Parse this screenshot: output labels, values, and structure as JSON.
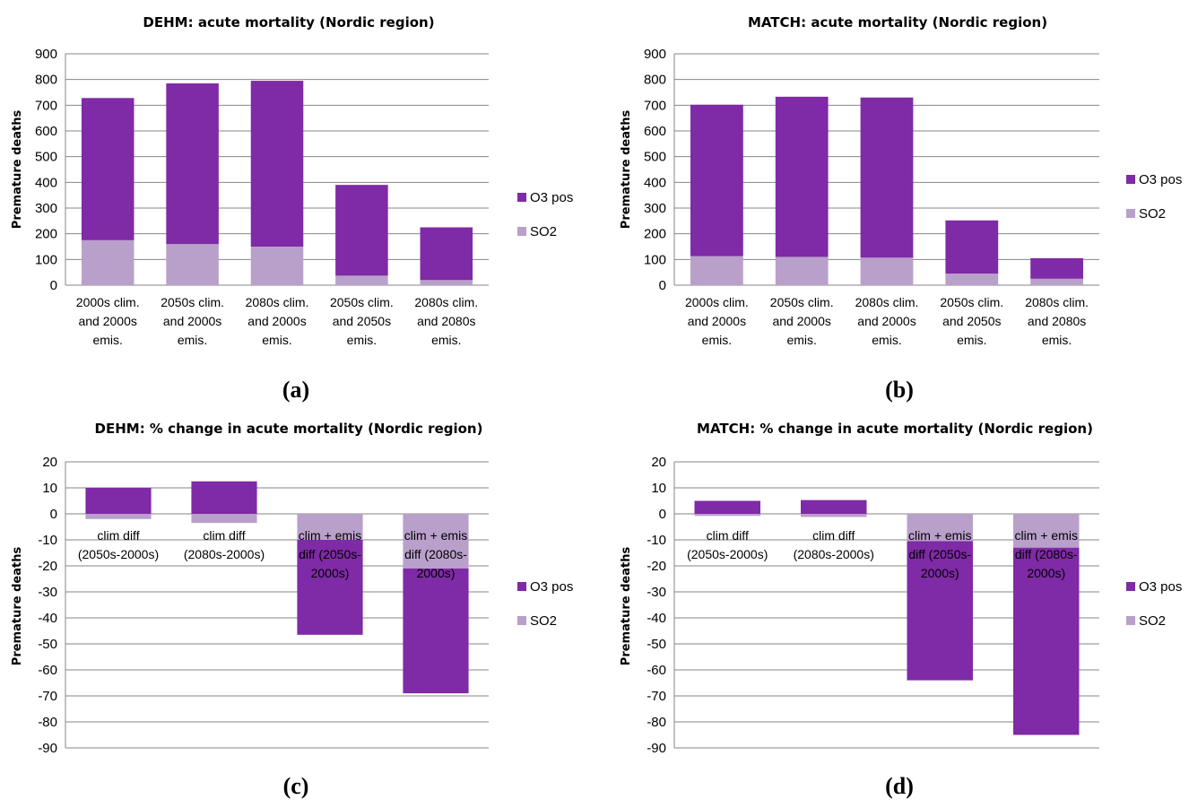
{
  "colors": {
    "o3": "#7f2aa6",
    "so2": "#b9a0ca"
  },
  "chart_data": [
    {
      "type": "bar",
      "stacked": true,
      "title": "DEHM: acute mortality (Nordic region)",
      "panel_label": "(a)",
      "ylabel": "Premature deaths",
      "ylim": [
        0,
        900
      ],
      "yticks": [
        "0",
        "100",
        "200",
        "300",
        "400",
        "500",
        "600",
        "700",
        "800",
        "900"
      ],
      "categories": [
        [
          "2000s clim.",
          "and 2000s",
          "emis."
        ],
        [
          "2050s clim.",
          "and 2000s",
          "emis."
        ],
        [
          "2080s clim.",
          "and 2000s",
          "emis."
        ],
        [
          "2050s clim.",
          "and 2050s",
          "emis."
        ],
        [
          "2080s clim.",
          "and 2080s",
          "emis."
        ]
      ],
      "series": [
        {
          "name": "SO2",
          "values": [
            175,
            160,
            150,
            37,
            20
          ]
        },
        {
          "name": "O3 pos",
          "values": [
            553,
            625,
            645,
            353,
            205
          ]
        }
      ],
      "legend": [
        "O3 pos",
        "SO2"
      ],
      "legend_position": "right",
      "grid": true
    },
    {
      "type": "bar",
      "stacked": true,
      "title": "MATCH: acute mortality (Nordic region)",
      "panel_label": "(b)",
      "ylabel": "Premature deaths",
      "ylim": [
        0,
        900
      ],
      "yticks": [
        "0",
        "100",
        "200",
        "300",
        "400",
        "500",
        "600",
        "700",
        "800",
        "900"
      ],
      "categories": [
        [
          "2000s clim.",
          "and 2000s",
          "emis."
        ],
        [
          "2050s clim.",
          "and 2000s",
          "emis."
        ],
        [
          "2080s clim.",
          "and 2000s",
          "emis."
        ],
        [
          "2050s clim.",
          "and 2050s",
          "emis."
        ],
        [
          "2080s clim.",
          "and 2080s",
          "emis."
        ]
      ],
      "series": [
        {
          "name": "SO2",
          "values": [
            113,
            110,
            107,
            45,
            25
          ]
        },
        {
          "name": "O3 pos",
          "values": [
            589,
            623,
            623,
            207,
            80
          ]
        }
      ],
      "legend": [
        "O3 pos",
        "SO2"
      ],
      "legend_position": "right",
      "grid": true
    },
    {
      "type": "bar",
      "stacked": true,
      "title": "DEHM: % change in acute mortality (Nordic region)",
      "panel_label": "(c)",
      "ylabel": "Premature deaths",
      "ylim": [
        -90,
        20
      ],
      "yticks": [
        "20",
        "10",
        "0",
        "-10",
        "-20",
        "-30",
        "-40",
        "-50",
        "-60",
        "-70",
        "-80",
        "-90"
      ],
      "categories": [
        [
          "clim diff",
          "(2050s-2000s)"
        ],
        [
          "clim diff",
          "(2080s-2000s)"
        ],
        [
          "clim + emis",
          "diff (2050s-",
          "2000s)"
        ],
        [
          "clim + emis",
          "diff (2080s-",
          "2000s)"
        ]
      ],
      "series": [
        {
          "name": "SO2",
          "values": [
            -2,
            -3.5,
            -10,
            -21
          ]
        },
        {
          "name": "O3 pos",
          "values": [
            10,
            12.5,
            -36.5,
            -48
          ]
        }
      ],
      "legend": [
        "O3 pos",
        "SO2"
      ],
      "legend_position": "right",
      "grid": true
    },
    {
      "type": "bar",
      "stacked": true,
      "title": "MATCH: % change in acute mortality (Nordic region)",
      "panel_label": "(d)",
      "ylabel": "Premature deaths",
      "ylim": [
        -90,
        20
      ],
      "yticks": [
        "20",
        "10",
        "0",
        "-10",
        "-20",
        "-30",
        "-40",
        "-50",
        "-60",
        "-70",
        "-80",
        "-90"
      ],
      "categories": [
        [
          "clim diff",
          "(2050s-2000s)"
        ],
        [
          "clim diff",
          "(2080s-2000s)"
        ],
        [
          "clim + emis",
          "diff (2050s-",
          "2000s)"
        ],
        [
          "clim + emis",
          "diff (2080s-",
          "2000s)"
        ]
      ],
      "series": [
        {
          "name": "SO2",
          "values": [
            -0.8,
            -1.2,
            -10.5,
            -13
          ]
        },
        {
          "name": "O3 pos",
          "values": [
            5,
            5.3,
            -53.5,
            -72
          ]
        }
      ],
      "legend": [
        "O3 pos",
        "SO2"
      ],
      "legend_position": "right",
      "grid": true
    }
  ]
}
